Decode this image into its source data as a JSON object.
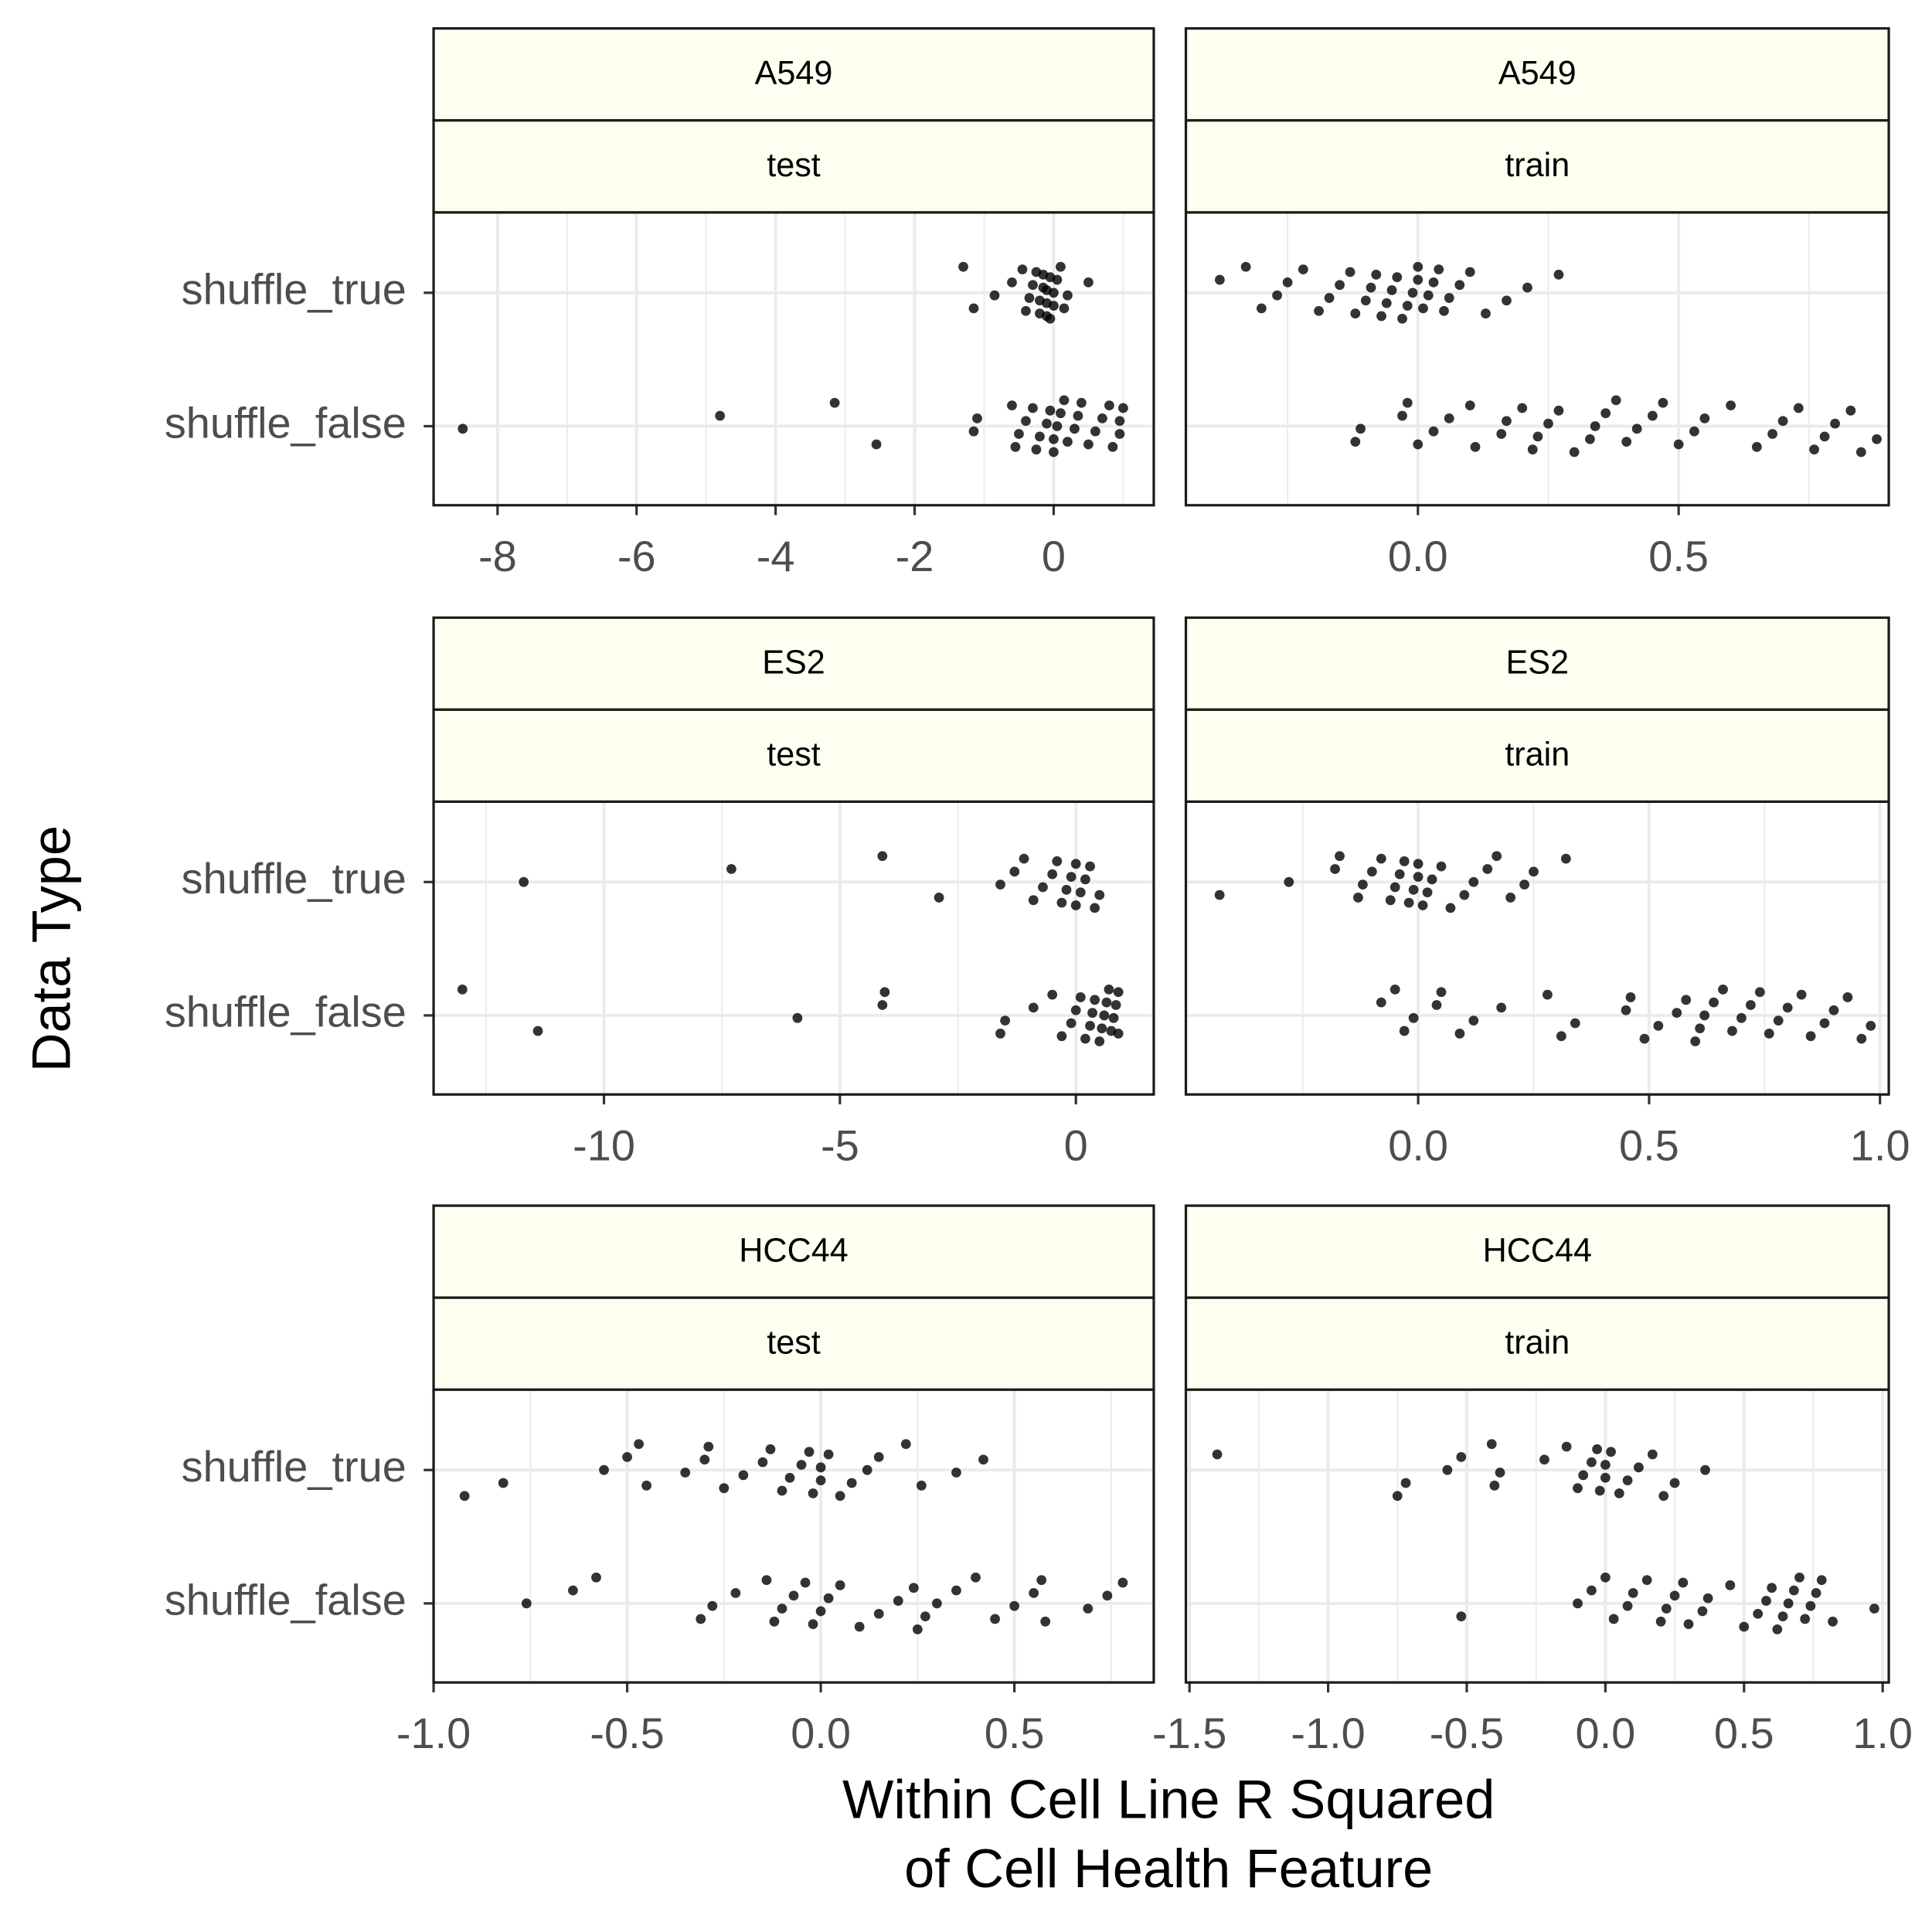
{
  "ylabel": "Data Type",
  "xlabel": [
    "Within Cell Line R Squared",
    "of Cell Health Feature"
  ],
  "chart_data": [
    {
      "type": "scatter",
      "strips": [
        "A549",
        "test"
      ],
      "xlim": [
        -8.92,
        1.44
      ],
      "xticks": [
        -8,
        -6,
        -4,
        -2,
        0
      ],
      "xminor": [
        -7,
        -5,
        -3,
        -1,
        1
      ],
      "rows": [
        {
          "label": "shuffle_true",
          "values": [
            -1.3,
            -1.15,
            -0.85,
            -0.6,
            -0.45,
            -0.4,
            -0.35,
            -0.3,
            -0.25,
            -0.2,
            -0.2,
            -0.15,
            -0.15,
            -0.1,
            -0.1,
            -0.1,
            -0.05,
            -0.05,
            0,
            0,
            0.05,
            0.1,
            0.15,
            0.2,
            0.5
          ]
        },
        {
          "label": "shuffle_false",
          "values": [
            -8.5,
            -4.8,
            -3.15,
            -2.55,
            -1.15,
            -1.1,
            -0.6,
            -0.55,
            -0.5,
            -0.4,
            -0.3,
            -0.25,
            -0.2,
            -0.1,
            -0.05,
            0,
            0,
            0.05,
            0.1,
            0.15,
            0.2,
            0.3,
            0.35,
            0.4,
            0.5,
            0.6,
            0.7,
            0.8,
            0.85,
            0.95,
            0.95,
            1.0
          ]
        }
      ]
    },
    {
      "type": "scatter",
      "strips": [
        "A549",
        "train"
      ],
      "xlim": [
        -0.445,
        0.903
      ],
      "xticks": [
        {
          "value": 0,
          "label": "0.0"
        },
        0.5
      ],
      "xminor": [
        -0.25,
        0.25,
        0.75
      ],
      "rows": [
        {
          "values": [
            -0.38,
            -0.33,
            -0.3,
            -0.27,
            -0.25,
            -0.22,
            -0.19,
            -0.17,
            -0.15,
            -0.13,
            -0.12,
            -0.1,
            -0.09,
            -0.08,
            -0.07,
            -0.06,
            -0.05,
            -0.04,
            -0.03,
            -0.02,
            -0.01,
            0,
            0,
            0.01,
            0.02,
            0.03,
            0.04,
            0.05,
            0.06,
            0.08,
            0.1,
            0.13,
            0.17,
            0.21,
            0.27
          ]
        },
        {
          "values": [
            -0.12,
            -0.11,
            -0.03,
            -0.02,
            0,
            0.03,
            0.06,
            0.1,
            0.11,
            0.16,
            0.17,
            0.2,
            0.22,
            0.23,
            0.25,
            0.27,
            0.3,
            0.33,
            0.34,
            0.36,
            0.38,
            0.4,
            0.42,
            0.45,
            0.47,
            0.5,
            0.53,
            0.55,
            0.6,
            0.65,
            0.68,
            0.7,
            0.73,
            0.76,
            0.78,
            0.8,
            0.83,
            0.85,
            0.88
          ]
        }
      ]
    },
    {
      "type": "scatter",
      "strips": [
        "ES2",
        "test"
      ],
      "xlim": [
        -13.61,
        1.65
      ],
      "xticks": [
        -10,
        -5,
        0
      ],
      "xminor": [
        -12.5,
        -7.5,
        -2.5
      ],
      "rows": [
        {
          "label": "shuffle_true",
          "values": [
            -11.7,
            -7.3,
            -4.1,
            -2.9,
            -1.6,
            -1.3,
            -1.1,
            -0.9,
            -0.7,
            -0.5,
            -0.4,
            -0.3,
            -0.2,
            -0.1,
            0,
            0,
            0.1,
            0.2,
            0.3,
            0.4,
            0.5
          ]
        },
        {
          "label": "shuffle_false",
          "values": [
            -13,
            -11.4,
            -5.9,
            -4.1,
            -4.05,
            -1.6,
            -1.5,
            -0.9,
            -0.5,
            -0.3,
            -0.1,
            0,
            0.1,
            0.2,
            0.3,
            0.35,
            0.4,
            0.5,
            0.55,
            0.6,
            0.65,
            0.7,
            0.75,
            0.8,
            0.85,
            0.9,
            0.9
          ]
        }
      ]
    },
    {
      "type": "scatter",
      "strips": [
        "ES2",
        "train"
      ],
      "xlim": [
        -0.503,
        1.019
      ],
      "xticks": [
        {
          "value": 0,
          "label": "0.0"
        },
        0.5,
        {
          "value": 1,
          "label": "1.0"
        }
      ],
      "xminor": [
        -0.25,
        0.25,
        0.75
      ],
      "rows": [
        {
          "values": [
            -0.43,
            -0.28,
            -0.18,
            -0.17,
            -0.13,
            -0.12,
            -0.1,
            -0.08,
            -0.06,
            -0.05,
            -0.04,
            -0.03,
            -0.02,
            -0.01,
            0,
            0,
            0.01,
            0.02,
            0.03,
            0.05,
            0.07,
            0.1,
            0.12,
            0.15,
            0.17,
            0.2,
            0.23,
            0.25,
            0.32
          ]
        },
        {
          "values": [
            -0.08,
            -0.05,
            -0.03,
            -0.01,
            0.04,
            0.05,
            0.09,
            0.12,
            0.18,
            0.28,
            0.31,
            0.34,
            0.45,
            0.46,
            0.49,
            0.52,
            0.56,
            0.58,
            0.6,
            0.61,
            0.62,
            0.64,
            0.66,
            0.68,
            0.7,
            0.72,
            0.74,
            0.76,
            0.78,
            0.8,
            0.83,
            0.85,
            0.88,
            0.9,
            0.93,
            0.96,
            0.98
          ]
        }
      ]
    },
    {
      "type": "scatter",
      "strips": [
        "HCC44",
        "test"
      ],
      "xlim": [
        -1.0,
        0.86
      ],
      "xticks": [
        {
          "value": -1,
          "label": "-1.0"
        },
        -0.5,
        {
          "value": 0,
          "label": "0.0"
        },
        0.5
      ],
      "xminor": [
        -0.75,
        -0.25,
        0.25,
        0.75
      ],
      "rows": [
        {
          "label": "shuffle_true",
          "values": [
            -0.92,
            -0.82,
            -0.56,
            -0.5,
            -0.47,
            -0.45,
            -0.35,
            -0.3,
            -0.29,
            -0.25,
            -0.2,
            -0.15,
            -0.13,
            -0.1,
            -0.08,
            -0.05,
            -0.03,
            -0.02,
            0,
            0,
            0.02,
            0.05,
            0.08,
            0.12,
            0.15,
            0.22,
            0.26,
            0.35,
            0.42
          ]
        },
        {
          "label": "shuffle_false",
          "values": [
            -0.76,
            -0.64,
            -0.58,
            -0.31,
            -0.28,
            -0.22,
            -0.14,
            -0.12,
            -0.1,
            -0.07,
            -0.04,
            -0.02,
            0,
            0.02,
            0.05,
            0.1,
            0.15,
            0.2,
            0.24,
            0.25,
            0.27,
            0.3,
            0.35,
            0.4,
            0.45,
            0.5,
            0.55,
            0.57,
            0.58,
            0.69,
            0.74,
            0.78
          ]
        }
      ]
    },
    {
      "type": "scatter",
      "strips": [
        "HCC44",
        "train"
      ],
      "xlim": [
        -1.513,
        1.022
      ],
      "xticks": [
        -1.5,
        {
          "value": -1,
          "label": "-1.0"
        },
        -0.5,
        {
          "value": 0,
          "label": "0.0"
        },
        0.5,
        {
          "value": 1,
          "label": "1.0"
        }
      ],
      "xminor": [
        -1.25,
        -0.75,
        -0.25,
        0.25,
        0.75
      ],
      "rows": [
        {
          "values": [
            -1.4,
            -0.75,
            -0.72,
            -0.57,
            -0.52,
            -0.41,
            -0.4,
            -0.38,
            -0.22,
            -0.14,
            -0.1,
            -0.08,
            -0.05,
            -0.03,
            -0.02,
            0,
            0,
            0.02,
            0.05,
            0.08,
            0.12,
            0.17,
            0.21,
            0.25,
            0.36
          ]
        },
        {
          "values": [
            -0.52,
            -0.1,
            -0.05,
            0,
            0.03,
            0.08,
            0.1,
            0.15,
            0.2,
            0.22,
            0.25,
            0.28,
            0.3,
            0.35,
            0.37,
            0.45,
            0.5,
            0.55,
            0.58,
            0.6,
            0.62,
            0.64,
            0.66,
            0.68,
            0.7,
            0.72,
            0.74,
            0.76,
            0.78,
            0.82,
            0.97
          ]
        }
      ]
    }
  ]
}
